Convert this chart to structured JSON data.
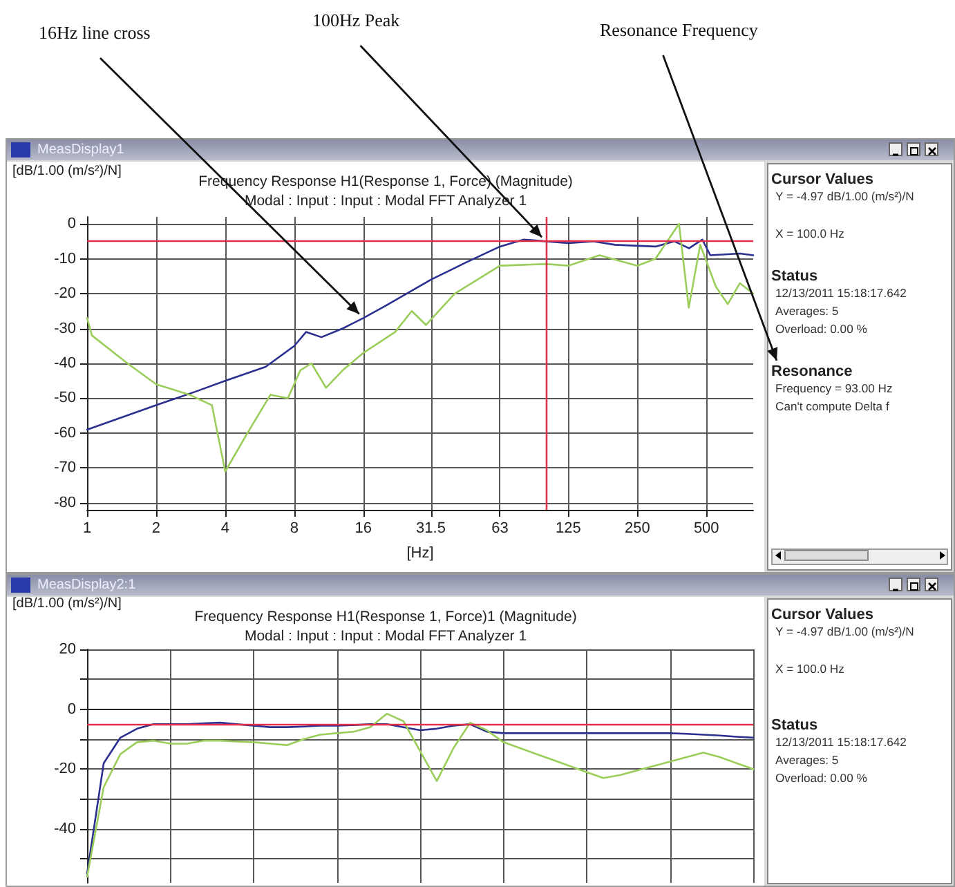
{
  "chart_data": [
    {
      "type": "line",
      "title": "Frequency Response H1(Response 1, Force) (Magnitude)",
      "subtitle": "Modal : Input : Input : Modal FFT Analyzer 1",
      "xlabel": "[Hz]",
      "ylabel": "[dB/1.00 (m/s²)/N]",
      "log": "x",
      "grid": true,
      "marker": "none",
      "line_style": "solid",
      "xlim": [
        1,
        800
      ],
      "xticks": [
        1,
        2,
        4,
        8,
        16,
        31.5,
        63,
        125,
        250,
        500
      ],
      "ylim": [
        -82,
        2
      ],
      "yticks": [
        0,
        -10,
        -20,
        -30,
        -40,
        -50,
        -60,
        -70,
        -80
      ],
      "ref_lines": [
        {
          "axis": "y",
          "value": -5,
          "color": "#e0304a"
        },
        {
          "axis": "x",
          "value": 100,
          "color": "#e0304a"
        }
      ],
      "series": [
        {
          "color": "#2b2f8f",
          "x": [
            1,
            2,
            3,
            4,
            6,
            8,
            9,
            10.5,
            13,
            16,
            20,
            31.5,
            45,
            63,
            80,
            100,
            125,
            160,
            200,
            300,
            363,
            420,
            480,
            520,
            700,
            800
          ],
          "values": [
            -59,
            -52,
            -48,
            -45,
            -41,
            -35,
            -31,
            -32.5,
            -30,
            -27,
            -23.5,
            -16,
            -11,
            -6.5,
            -4.5,
            -5,
            -5.5,
            -5,
            -6,
            -6.5,
            -5,
            -7,
            -4.5,
            -9,
            -8.5,
            -9
          ]
        },
        {
          "color": "#9acd5a",
          "x": [
            1,
            1.05,
            1.5,
            2,
            2.8,
            3.5,
            4,
            5,
            6.3,
            7.5,
            8.5,
            9.5,
            11,
            13,
            16,
            22,
            26,
            30,
            40,
            63,
            100,
            125,
            171,
            250,
            300,
            380,
            419,
            470,
            550,
            620,
            700,
            800
          ],
          "values": [
            -27,
            -32,
            -40,
            -46,
            -49,
            -52,
            -71,
            -60,
            -49,
            -50,
            -42,
            -40,
            -47,
            -42,
            -37,
            -31,
            -25,
            -29,
            -20,
            -12,
            -11.5,
            -12,
            -9,
            -12,
            -10,
            0,
            -24,
            -6,
            -18,
            -23,
            -17,
            -20
          ]
        }
      ],
      "annotations": [
        "MeasDisplay1",
        "Cursor Values",
        "Y = -4.97 dB/1.00 (m/s²)/N",
        "X = 100.0 Hz",
        "Status",
        "12/13/2011  15:18:17.642",
        "Averages: 5",
        "Overload:  0.00 %",
        "Resonance",
        "Frequency = 93.00 Hz",
        "Can't compute Delta f",
        {
          "text": "16Hz line cross",
          "x": 16,
          "y": -27
        },
        {
          "text": "100Hz Peak",
          "x": 100,
          "y": -5
        },
        "Resonance Frequency"
      ]
    },
    {
      "type": "line",
      "title": "Frequency Response H1(Response 1, Force)1 (Magnitude)",
      "subtitle": "Modal : Input : Input : Modal FFT Analyzer 1",
      "ylabel": "[dB/1.00 (m/s²)/N]",
      "grid": true,
      "marker": "none",
      "line_style": "solid",
      "tick_labels": "y",
      "categories": [
        null,
        null,
        null,
        null,
        null,
        null,
        null,
        null,
        null,
        null,
        null,
        null,
        null,
        null,
        null,
        null,
        null,
        null,
        null,
        null,
        null,
        null,
        null,
        null,
        null,
        null,
        null,
        null,
        null,
        null,
        null,
        null,
        null,
        null,
        null,
        null,
        null,
        null,
        null,
        null,
        null
      ],
      "ylim": [
        -58,
        20
      ],
      "yticks": [
        20,
        {
          "value": 10,
          "label": null
        },
        0,
        {
          "value": -10,
          "label": null
        },
        -20,
        {
          "value": -30,
          "label": null
        },
        -40,
        {
          "value": -50,
          "label": null
        }
      ],
      "ref_lines": [
        {
          "axis": "y",
          "value": -5,
          "color": "#e0304a"
        }
      ],
      "series": [
        {
          "color": "#2b2f8f",
          "values": [
            -55,
            -18,
            -9.5,
            -6.5,
            -5,
            -5,
            -5,
            -4.7,
            -4.5,
            -5,
            -5.5,
            -6,
            -6,
            -5.8,
            -5.5,
            -5.5,
            -5.3,
            -5,
            -5,
            -6,
            -7,
            -6.5,
            -5.5,
            -5,
            -7.5,
            -8,
            -8,
            -8,
            -8,
            -8,
            -8,
            -8,
            -8,
            -8,
            -8,
            -8,
            -8.2,
            -8.5,
            -8.8,
            -9.2,
            -9.5
          ]
        },
        {
          "color": "#9acd5a",
          "values": [
            -56,
            -26,
            -15,
            -11,
            -10.5,
            -11.5,
            -11.5,
            -10.5,
            -10.5,
            -10.8,
            -11,
            -11.5,
            -12,
            -10,
            -8.5,
            -8,
            -7.5,
            -6,
            -1.5,
            -4,
            -14,
            -24,
            -13,
            -4.5,
            -7,
            -11,
            -13,
            -15,
            -17,
            -19,
            -21,
            -23,
            -22,
            -20.5,
            -19,
            -17.5,
            -16,
            -14.5,
            -16,
            -18,
            -20
          ]
        }
      ],
      "annotations": [
        "MeasDisplay2:1",
        "Cursor Values",
        "Y = -4.97 dB/1.00 (m/s²)/N",
        "X = 100.0 Hz",
        "Status",
        "12/13/2011  15:18:17.642",
        "Averages: 5",
        "Overload:  0.00 %"
      ]
    }
  ]
}
